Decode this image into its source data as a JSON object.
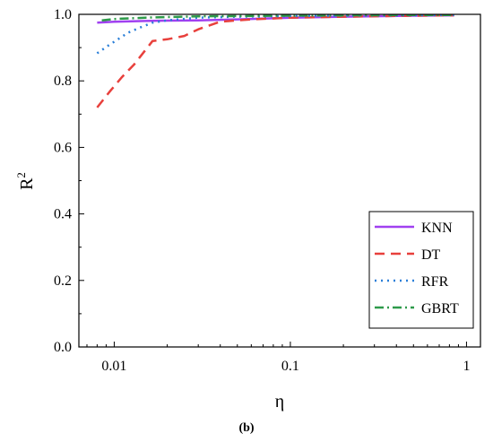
{
  "caption": "(b)",
  "chart_data": {
    "type": "line",
    "xlabel": "η",
    "ylabel": "R",
    "ylabel_sup": "2",
    "xscale": "log",
    "xlim": [
      0.0063,
      1.2
    ],
    "ylim": [
      0.0,
      1.0
    ],
    "x_ticks": [
      0.01,
      0.1,
      1
    ],
    "x_tick_labels": [
      "0.01",
      "0.1",
      "1"
    ],
    "y_ticks": [
      0.0,
      0.2,
      0.4,
      0.6,
      0.8,
      1.0
    ],
    "y_tick_labels": [
      "0.0",
      "0.2",
      "0.4",
      "0.6",
      "0.8",
      "1.0"
    ],
    "grid": false,
    "legend_position": "lower-right",
    "series": [
      {
        "name": "KNN",
        "color": "#a040f0",
        "dash": "solid",
        "x": [
          0.008,
          0.01,
          0.015,
          0.02,
          0.03,
          0.05,
          0.1,
          0.2,
          0.5,
          0.85
        ],
        "y": [
          0.975,
          0.978,
          0.98,
          0.981,
          0.982,
          0.985,
          0.99,
          0.993,
          0.996,
          0.997
        ]
      },
      {
        "name": "DT",
        "color": "#e8403c",
        "dash": "long-dash",
        "x": [
          0.008,
          0.0095,
          0.011,
          0.013,
          0.0165,
          0.02,
          0.025,
          0.03,
          0.04,
          0.06,
          0.1,
          0.2,
          0.5,
          0.85
        ],
        "y": [
          0.72,
          0.77,
          0.81,
          0.85,
          0.92,
          0.925,
          0.935,
          0.955,
          0.978,
          0.985,
          0.99,
          0.993,
          0.996,
          0.997
        ]
      },
      {
        "name": "RFR",
        "color": "#2a7fd8",
        "dash": "dotted",
        "x": [
          0.008,
          0.0092,
          0.0105,
          0.012,
          0.014,
          0.0165,
          0.02,
          0.03,
          0.05,
          0.1,
          0.2,
          0.5,
          0.85
        ],
        "y": [
          0.883,
          0.905,
          0.925,
          0.945,
          0.96,
          0.975,
          0.982,
          0.99,
          0.993,
          0.995,
          0.996,
          0.997,
          0.998
        ]
      },
      {
        "name": "GBRT",
        "color": "#2e9a4a",
        "dash": "dash-dot",
        "x": [
          0.0085,
          0.01,
          0.015,
          0.02,
          0.03,
          0.05,
          0.1,
          0.2,
          0.5,
          0.85
        ],
        "y": [
          0.982,
          0.986,
          0.99,
          0.992,
          0.994,
          0.995,
          0.996,
          0.997,
          0.998,
          0.998
        ]
      }
    ]
  }
}
